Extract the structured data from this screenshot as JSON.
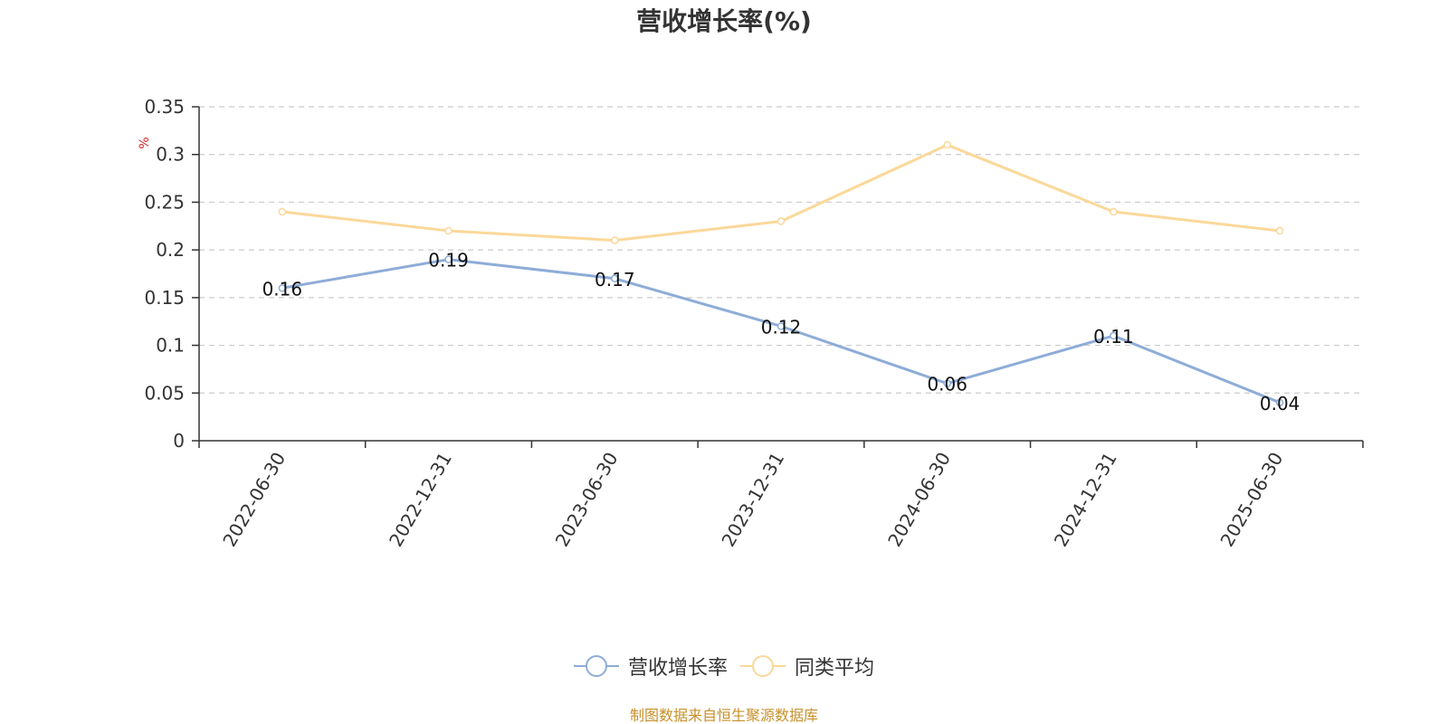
{
  "chart_data": {
    "type": "line",
    "title": "营收增长率(%)",
    "ylabel": "%",
    "ylim": [
      0,
      0.35
    ],
    "yticks": [
      "0",
      "0.05",
      "0.1",
      "0.15",
      "0.2",
      "0.25",
      "0.3",
      "0.35"
    ],
    "categories": [
      "2022-06-30",
      "2022-12-31",
      "2023-06-30",
      "2023-12-31",
      "2024-06-30",
      "2024-12-31",
      "2025-06-30"
    ],
    "series": [
      {
        "name": "营收增长率",
        "color": "#8eacd8",
        "values": [
          0.16,
          0.19,
          0.17,
          0.12,
          0.06,
          0.11,
          0.04
        ],
        "data_labels": [
          "0.16",
          "0.19",
          "0.17",
          "0.12",
          "0.06",
          "0.11",
          "0.04"
        ]
      },
      {
        "name": "同类平均",
        "color": "#fbd899",
        "values": [
          0.24,
          0.22,
          0.21,
          0.23,
          0.31,
          0.24,
          0.22
        ]
      }
    ],
    "grid": true,
    "legend_position": "bottom-center"
  },
  "source_note": "制图数据来自恒生聚源数据库"
}
